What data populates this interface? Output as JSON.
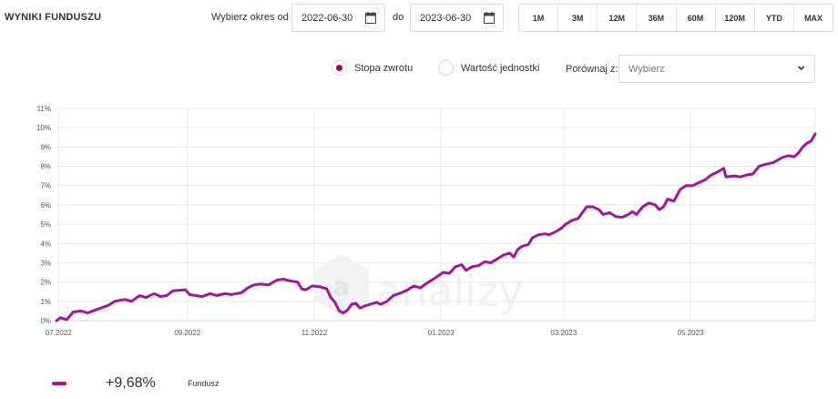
{
  "header": {
    "title": "WYNIKI FUNDUSZU",
    "period_label": "Wybierz okres od",
    "date_from": "2022-06-30",
    "to_label": "do",
    "date_to": "2023-06-30"
  },
  "ranges": [
    "1M",
    "3M",
    "12M",
    "36M",
    "60M",
    "120M",
    "YTD",
    "MAX"
  ],
  "options": {
    "radio_return": "Stopa zwrotu",
    "radio_return_selected": true,
    "radio_unit": "Wartość jednostki",
    "radio_unit_selected": false,
    "compare_label": "Porównaj z:",
    "compare_select": "Wybierz"
  },
  "watermark": "analizy",
  "legend": {
    "value": "+9,68%",
    "name": "Fundusz",
    "color": "#a3159d"
  },
  "chart_data": {
    "type": "line",
    "title": "",
    "xlabel": "",
    "ylabel": "",
    "ylim": [
      0,
      11
    ],
    "y_unit": "%",
    "yticks": [
      "0%",
      "1%",
      "2%",
      "3%",
      "4%",
      "5%",
      "6%",
      "7%",
      "8%",
      "9%",
      "10%",
      "11%"
    ],
    "xticks": [
      "07.2022",
      "09.2022",
      "11.2022",
      "01.2023",
      "03.2023",
      "05.2023"
    ],
    "xlim": [
      "2022-06-30",
      "2023-06-30"
    ],
    "grid": true,
    "series": [
      {
        "name": "Fundusz",
        "color": "#a3159d",
        "points": [
          [
            "2022-06-30",
            0.0
          ],
          [
            "2022-07-02",
            0.15
          ],
          [
            "2022-07-05",
            0.05
          ],
          [
            "2022-07-08",
            0.45
          ],
          [
            "2022-07-12",
            0.5
          ],
          [
            "2022-07-15",
            0.4
          ],
          [
            "2022-07-20",
            0.6
          ],
          [
            "2022-07-25",
            0.8
          ],
          [
            "2022-07-28",
            1.0
          ],
          [
            "2022-08-02",
            1.1
          ],
          [
            "2022-08-05",
            1.0
          ],
          [
            "2022-08-09",
            1.3
          ],
          [
            "2022-08-12",
            1.2
          ],
          [
            "2022-08-16",
            1.4
          ],
          [
            "2022-08-19",
            1.25
          ],
          [
            "2022-08-22",
            1.3
          ],
          [
            "2022-08-25",
            1.55
          ],
          [
            "2022-08-31",
            1.6
          ],
          [
            "2022-09-02",
            1.35
          ],
          [
            "2022-09-08",
            1.25
          ],
          [
            "2022-09-12",
            1.4
          ],
          [
            "2022-09-15",
            1.3
          ],
          [
            "2022-09-19",
            1.4
          ],
          [
            "2022-09-22",
            1.35
          ],
          [
            "2022-09-27",
            1.45
          ],
          [
            "2022-09-30",
            1.7
          ],
          [
            "2022-10-03",
            1.85
          ],
          [
            "2022-10-06",
            1.9
          ],
          [
            "2022-10-10",
            1.85
          ],
          [
            "2022-10-14",
            2.1
          ],
          [
            "2022-10-17",
            2.15
          ],
          [
            "2022-10-21",
            2.05
          ],
          [
            "2022-10-24",
            2.0
          ],
          [
            "2022-10-26",
            1.65
          ],
          [
            "2022-10-28",
            1.6
          ],
          [
            "2022-10-31",
            1.8
          ],
          [
            "2022-11-04",
            1.75
          ],
          [
            "2022-11-07",
            1.65
          ],
          [
            "2022-11-09",
            1.2
          ],
          [
            "2022-11-11",
            0.95
          ],
          [
            "2022-11-13",
            0.5
          ],
          [
            "2022-11-15",
            0.4
          ],
          [
            "2022-11-17",
            0.55
          ],
          [
            "2022-11-19",
            0.85
          ],
          [
            "2022-11-21",
            0.9
          ],
          [
            "2022-11-23",
            0.65
          ],
          [
            "2022-11-25",
            0.75
          ],
          [
            "2022-11-28",
            0.85
          ],
          [
            "2022-12-01",
            0.95
          ],
          [
            "2022-12-03",
            0.85
          ],
          [
            "2022-12-06",
            1.0
          ],
          [
            "2022-12-09",
            1.3
          ],
          [
            "2022-12-13",
            1.45
          ],
          [
            "2022-12-16",
            1.6
          ],
          [
            "2022-12-19",
            1.8
          ],
          [
            "2022-12-22",
            1.7
          ],
          [
            "2022-12-26",
            2.0
          ],
          [
            "2022-12-29",
            2.2
          ],
          [
            "2023-01-02",
            2.5
          ],
          [
            "2023-01-05",
            2.45
          ],
          [
            "2023-01-08",
            2.8
          ],
          [
            "2023-01-11",
            2.9
          ],
          [
            "2023-01-13",
            2.6
          ],
          [
            "2023-01-16",
            2.8
          ],
          [
            "2023-01-19",
            2.85
          ],
          [
            "2023-01-22",
            3.05
          ],
          [
            "2023-01-25",
            3.0
          ],
          [
            "2023-01-28",
            3.2
          ],
          [
            "2023-01-31",
            3.4
          ],
          [
            "2023-02-03",
            3.5
          ],
          [
            "2023-02-05",
            3.3
          ],
          [
            "2023-02-07",
            3.7
          ],
          [
            "2023-02-09",
            3.85
          ],
          [
            "2023-02-12",
            3.95
          ],
          [
            "2023-02-14",
            4.3
          ],
          [
            "2023-02-17",
            4.45
          ],
          [
            "2023-02-20",
            4.5
          ],
          [
            "2023-02-22",
            4.45
          ],
          [
            "2023-02-25",
            4.6
          ],
          [
            "2023-02-28",
            4.8
          ],
          [
            "2023-03-02",
            5.0
          ],
          [
            "2023-03-05",
            5.2
          ],
          [
            "2023-03-08",
            5.3
          ],
          [
            "2023-03-10",
            5.6
          ],
          [
            "2023-03-12",
            5.9
          ],
          [
            "2023-03-15",
            5.9
          ],
          [
            "2023-03-18",
            5.75
          ],
          [
            "2023-03-20",
            5.5
          ],
          [
            "2023-03-23",
            5.6
          ],
          [
            "2023-03-26",
            5.4
          ],
          [
            "2023-03-29",
            5.35
          ],
          [
            "2023-04-01",
            5.5
          ],
          [
            "2023-04-03",
            5.65
          ],
          [
            "2023-04-05",
            5.5
          ],
          [
            "2023-04-08",
            5.9
          ],
          [
            "2023-04-11",
            6.1
          ],
          [
            "2023-04-14",
            6.0
          ],
          [
            "2023-04-16",
            5.75
          ],
          [
            "2023-04-18",
            5.9
          ],
          [
            "2023-04-20",
            6.3
          ],
          [
            "2023-04-23",
            6.2
          ],
          [
            "2023-04-26",
            6.8
          ],
          [
            "2023-04-29",
            7.0
          ],
          [
            "2023-05-02",
            7.0
          ],
          [
            "2023-05-05",
            7.15
          ],
          [
            "2023-05-08",
            7.3
          ],
          [
            "2023-05-11",
            7.55
          ],
          [
            "2023-05-14",
            7.7
          ],
          [
            "2023-05-17",
            7.9
          ],
          [
            "2023-05-18",
            7.45
          ],
          [
            "2023-05-22",
            7.5
          ],
          [
            "2023-05-25",
            7.45
          ],
          [
            "2023-05-28",
            7.55
          ],
          [
            "2023-05-31",
            7.6
          ],
          [
            "2023-06-03",
            8.0
          ],
          [
            "2023-06-06",
            8.1
          ],
          [
            "2023-06-10",
            8.2
          ],
          [
            "2023-06-14",
            8.45
          ],
          [
            "2023-06-17",
            8.55
          ],
          [
            "2023-06-20",
            8.5
          ],
          [
            "2023-06-22",
            8.7
          ],
          [
            "2023-06-24",
            9.0
          ],
          [
            "2023-06-26",
            9.2
          ],
          [
            "2023-06-28",
            9.3
          ],
          [
            "2023-06-30",
            9.68
          ]
        ]
      }
    ]
  }
}
